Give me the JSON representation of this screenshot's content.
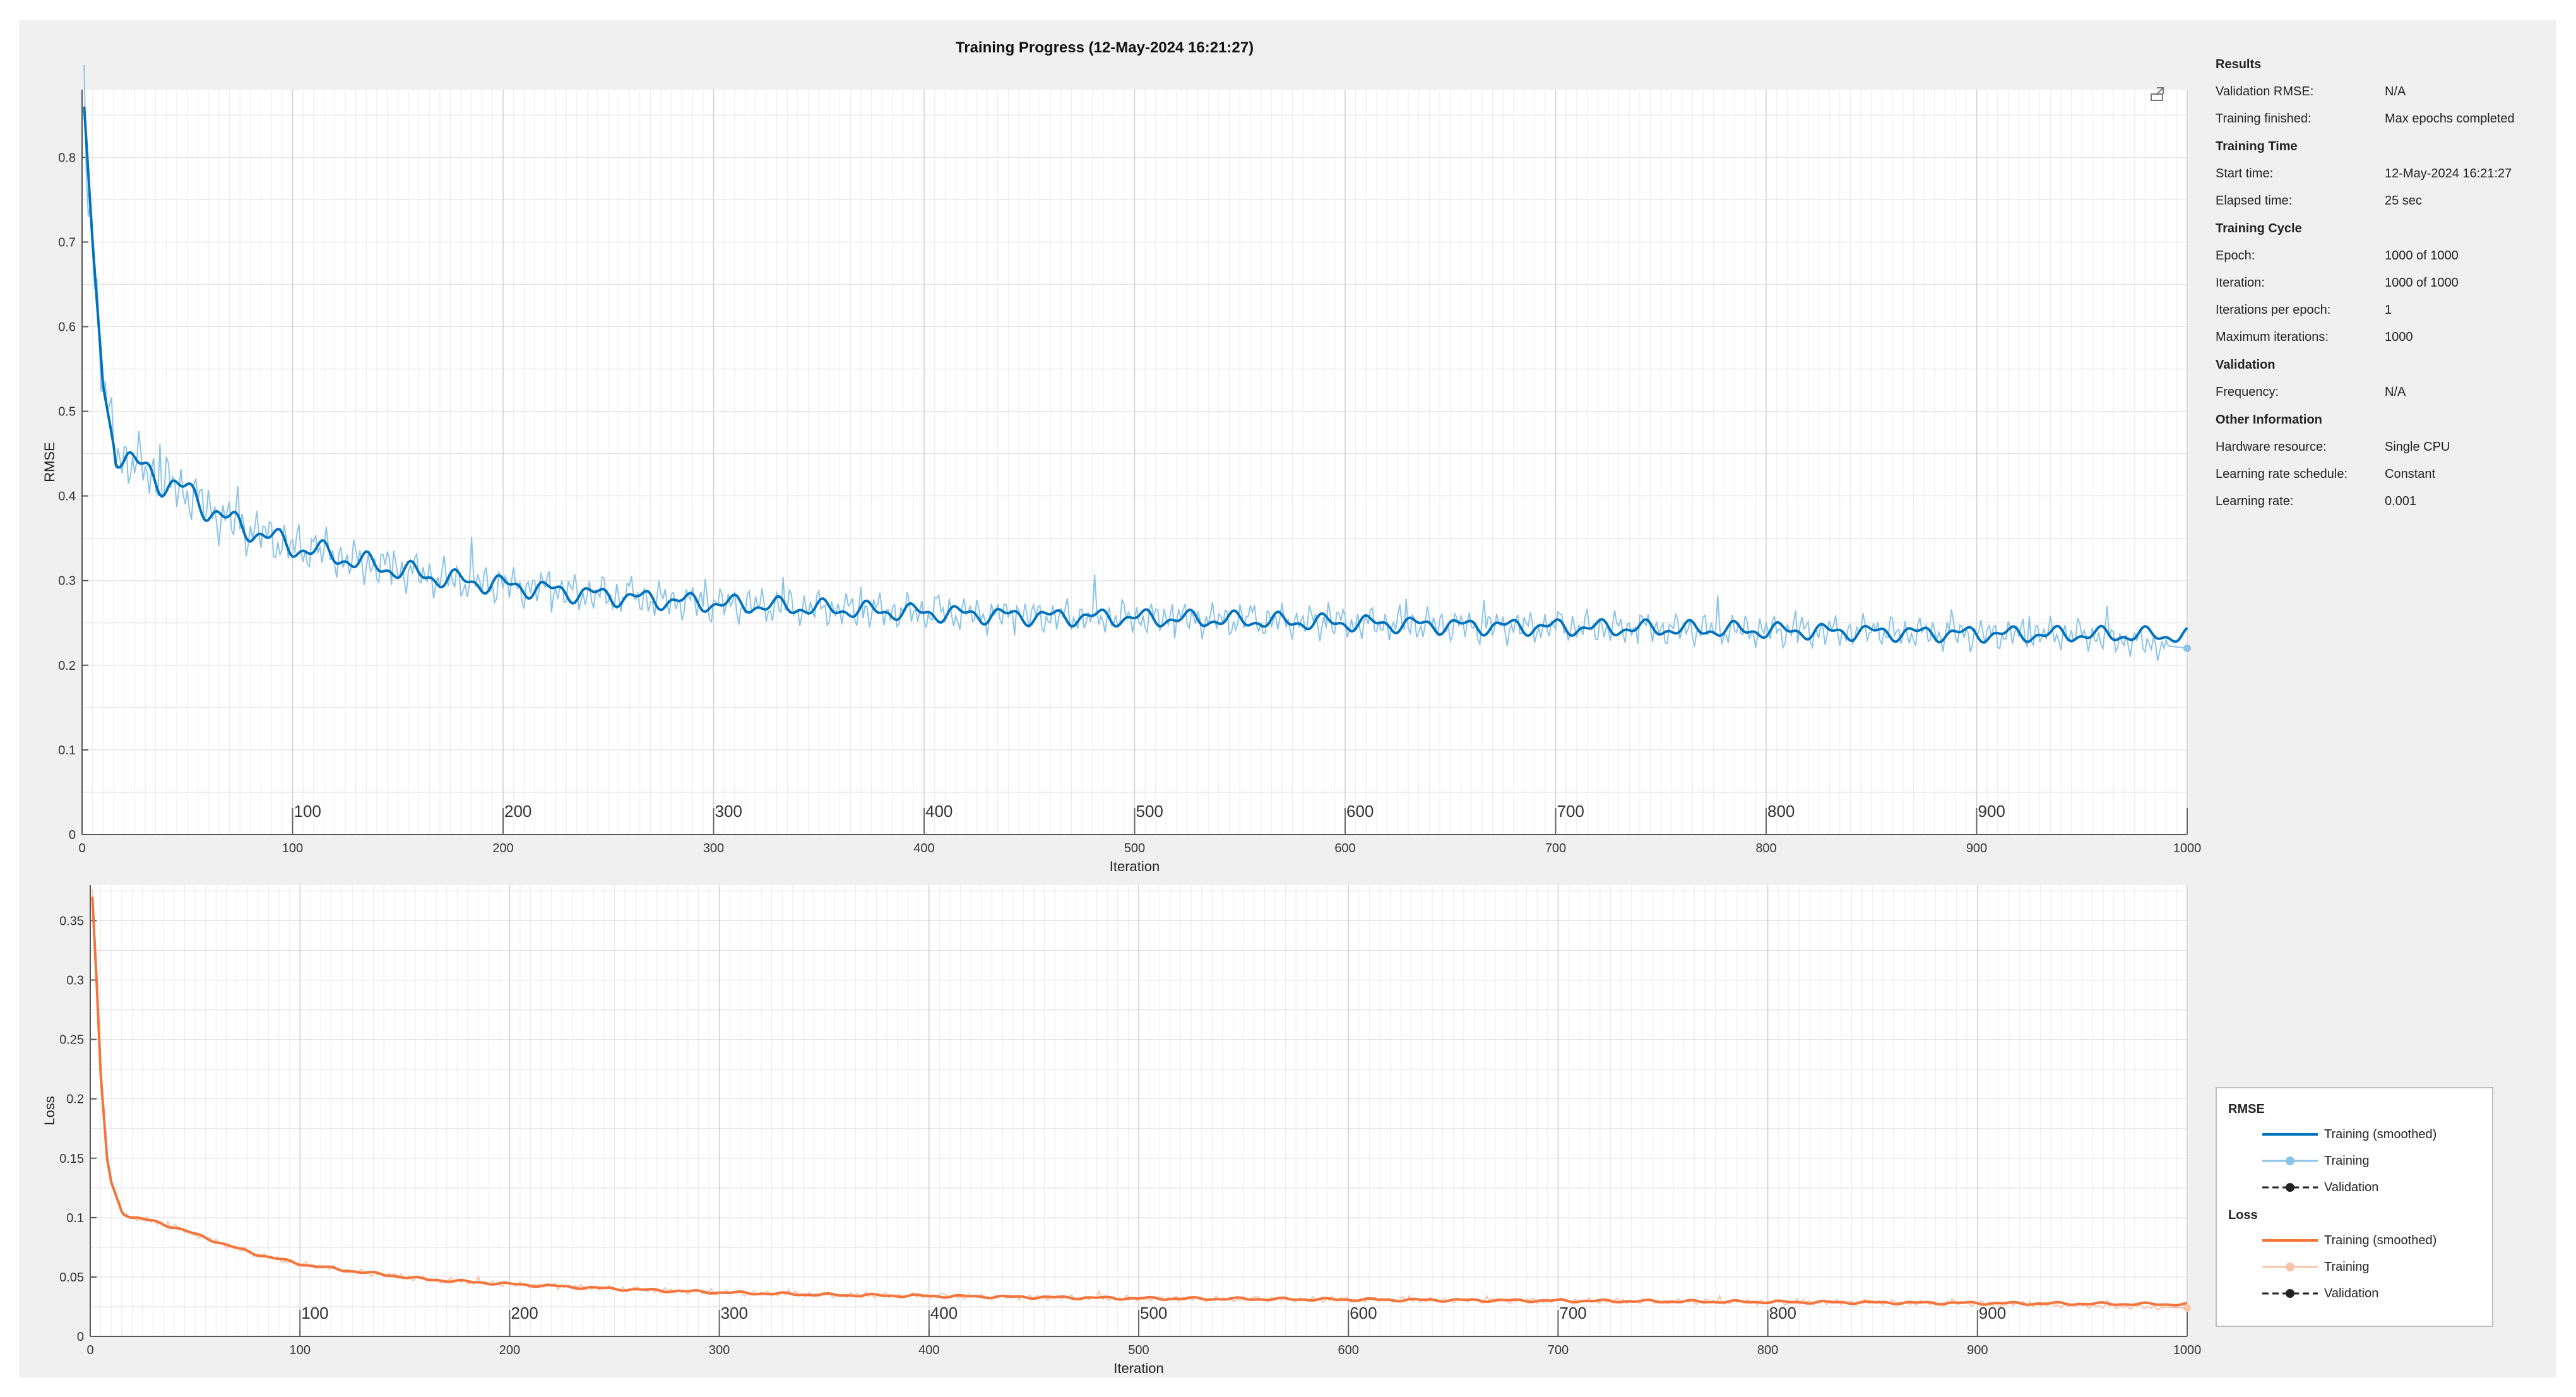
{
  "window": {
    "title": "Training Progress (12-May-2024 16:21:27)"
  },
  "info": {
    "sections": [
      {
        "title": "Results",
        "rows": [
          {
            "label": "Validation RMSE:",
            "value": "N/A"
          },
          {
            "label": "Training finished:",
            "value": "Max epochs completed"
          }
        ]
      },
      {
        "title": "Training Time",
        "rows": [
          {
            "label": "Start time:",
            "value": "12-May-2024 16:21:27"
          },
          {
            "label": "Elapsed time:",
            "value": "25 sec"
          }
        ]
      },
      {
        "title": "Training Cycle",
        "rows": [
          {
            "label": "Epoch:",
            "value": "1000 of 1000"
          },
          {
            "label": "Iteration:",
            "value": "1000 of 1000"
          },
          {
            "label": "Iterations per epoch:",
            "value": "1"
          },
          {
            "label": "Maximum iterations:",
            "value": "1000"
          }
        ]
      },
      {
        "title": "Validation",
        "rows": [
          {
            "label": "Frequency:",
            "value": "N/A"
          }
        ]
      },
      {
        "title": "Other Information",
        "rows": [
          {
            "label": "Hardware resource:",
            "value": "Single CPU"
          },
          {
            "label": "Learning rate schedule:",
            "value": "Constant"
          },
          {
            "label": "Learning rate:",
            "value": "0.001"
          }
        ]
      }
    ]
  },
  "legend": {
    "groups": [
      {
        "title": "RMSE",
        "items": [
          {
            "label": "Training (smoothed)",
            "style": "smoothed",
            "color": "#0072bd"
          },
          {
            "label": "Training",
            "style": "raw",
            "color": "#8cc4e8"
          },
          {
            "label": "Validation",
            "style": "validation",
            "color": "#222222"
          }
        ]
      },
      {
        "title": "Loss",
        "items": [
          {
            "label": "Training (smoothed)",
            "style": "smoothed",
            "color": "#f4743b"
          },
          {
            "label": "Training",
            "style": "raw",
            "color": "#f9c3aa"
          },
          {
            "label": "Validation",
            "style": "validation",
            "color": "#222222"
          }
        ]
      }
    ]
  },
  "chart_data": [
    {
      "type": "line",
      "title": "",
      "xlabel": "Iteration",
      "ylabel": "RMSE",
      "xlim": [
        0,
        1000
      ],
      "ylim": [
        0,
        0.88
      ],
      "yticks": [
        0,
        0.1,
        0.2,
        0.3,
        0.4,
        0.5,
        0.6,
        0.7,
        0.8
      ],
      "yticklabels": [
        "0",
        "0.1",
        "0.2",
        "0.3",
        "0.4",
        "0.5",
        "0.6",
        "0.7",
        "0.8"
      ],
      "xticks": [
        0,
        100,
        200,
        300,
        400,
        500,
        600,
        700,
        800,
        900,
        1000
      ],
      "xticklabels": [
        "0",
        "100",
        "200",
        "300",
        "400",
        "500",
        "600",
        "700",
        "800",
        "900",
        "1000"
      ],
      "epoch_markers": [
        100,
        200,
        300,
        400,
        500,
        600,
        700,
        800,
        900
      ],
      "epoch_marker_labels": [
        "100",
        "200",
        "300",
        "400",
        "500",
        "600",
        "700",
        "800",
        "900"
      ],
      "grid": true,
      "series": [
        {
          "name": "Training (smoothed)",
          "color": "#0072bd",
          "x": [
            1,
            5,
            10,
            15,
            20,
            30,
            40,
            50,
            60,
            70,
            80,
            90,
            100,
            110,
            120,
            130,
            140,
            150,
            160,
            170,
            180,
            190,
            200,
            225,
            250,
            275,
            300,
            350,
            400,
            450,
            500,
            550,
            600,
            650,
            700,
            750,
            800,
            850,
            900,
            950,
            1000
          ],
          "y": [
            0.86,
            0.7,
            0.53,
            0.46,
            0.445,
            0.43,
            0.415,
            0.405,
            0.385,
            0.37,
            0.36,
            0.35,
            0.34,
            0.335,
            0.33,
            0.322,
            0.318,
            0.312,
            0.308,
            0.303,
            0.3,
            0.297,
            0.295,
            0.288,
            0.282,
            0.277,
            0.273,
            0.267,
            0.262,
            0.258,
            0.256,
            0.253,
            0.25,
            0.247,
            0.245,
            0.243,
            0.241,
            0.239,
            0.237,
            0.236,
            0.235
          ]
        },
        {
          "name": "Training",
          "color": "#8cc4e8",
          "x": [
            1,
            5,
            10,
            15,
            20,
            30,
            40,
            50,
            60,
            70,
            80,
            90,
            100,
            110,
            120,
            130,
            140,
            150,
            160,
            170,
            180,
            190,
            200,
            225,
            250,
            275,
            300,
            350,
            400,
            450,
            500,
            550,
            600,
            650,
            700,
            750,
            800,
            850,
            900,
            950,
            1000
          ],
          "y": [
            0.86,
            0.7,
            0.53,
            0.46,
            0.445,
            0.43,
            0.415,
            0.405,
            0.385,
            0.37,
            0.36,
            0.35,
            0.34,
            0.335,
            0.33,
            0.322,
            0.318,
            0.312,
            0.308,
            0.303,
            0.3,
            0.297,
            0.295,
            0.288,
            0.282,
            0.277,
            0.273,
            0.267,
            0.262,
            0.258,
            0.256,
            0.253,
            0.25,
            0.247,
            0.245,
            0.243,
            0.241,
            0.239,
            0.237,
            0.236,
            0.22
          ]
        }
      ]
    },
    {
      "type": "line",
      "title": "",
      "xlabel": "Iteration",
      "ylabel": "Loss",
      "xlim": [
        0,
        1000
      ],
      "ylim": [
        0,
        0.38
      ],
      "yticks": [
        0,
        0.05,
        0.1,
        0.15,
        0.2,
        0.25,
        0.3,
        0.35
      ],
      "yticklabels": [
        "0",
        "0.05",
        "0.1",
        "0.15",
        "0.2",
        "0.25",
        "0.3",
        "0.35"
      ],
      "xticks": [
        0,
        100,
        200,
        300,
        400,
        500,
        600,
        700,
        800,
        900,
        1000
      ],
      "xticklabels": [
        "0",
        "100",
        "200",
        "300",
        "400",
        "500",
        "600",
        "700",
        "800",
        "900",
        "1000"
      ],
      "epoch_markers": [
        100,
        200,
        300,
        400,
        500,
        600,
        700,
        800,
        900
      ],
      "epoch_marker_labels": [
        "100",
        "200",
        "300",
        "400",
        "500",
        "600",
        "700",
        "800",
        "900"
      ],
      "grid": true,
      "series": [
        {
          "name": "Training (smoothed)",
          "color": "#f4743b",
          "x": [
            1,
            3,
            5,
            8,
            10,
            15,
            20,
            30,
            40,
            50,
            60,
            70,
            80,
            90,
            100,
            120,
            140,
            160,
            180,
            200,
            250,
            300,
            350,
            400,
            450,
            500,
            600,
            700,
            800,
            900,
            1000
          ],
          "y": [
            0.37,
            0.3,
            0.22,
            0.15,
            0.13,
            0.105,
            0.1,
            0.097,
            0.092,
            0.086,
            0.08,
            0.074,
            0.069,
            0.065,
            0.061,
            0.056,
            0.052,
            0.048,
            0.046,
            0.044,
            0.04,
            0.037,
            0.035,
            0.034,
            0.033,
            0.032,
            0.031,
            0.03,
            0.029,
            0.028,
            0.027
          ]
        },
        {
          "name": "Training",
          "color": "#f9c3aa",
          "x": [
            1,
            3,
            5,
            8,
            10,
            15,
            20,
            30,
            40,
            50,
            60,
            70,
            80,
            90,
            100,
            120,
            140,
            160,
            180,
            200,
            250,
            300,
            350,
            400,
            450,
            500,
            600,
            700,
            800,
            900,
            1000
          ],
          "y": [
            0.37,
            0.3,
            0.22,
            0.15,
            0.13,
            0.105,
            0.1,
            0.097,
            0.092,
            0.086,
            0.08,
            0.074,
            0.069,
            0.065,
            0.061,
            0.056,
            0.052,
            0.048,
            0.046,
            0.044,
            0.04,
            0.037,
            0.035,
            0.034,
            0.033,
            0.032,
            0.031,
            0.03,
            0.029,
            0.028,
            0.024
          ]
        }
      ]
    }
  ]
}
